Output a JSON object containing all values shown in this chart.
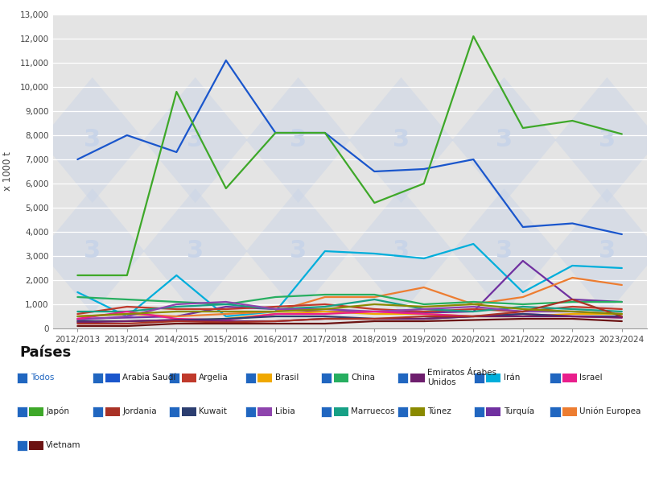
{
  "x_labels": [
    "2012/2013",
    "2013/2014",
    "2014/2015",
    "2015/2016",
    "2016/2017",
    "2017/2018",
    "2018/2019",
    "2019/2020",
    "2020/2021",
    "2021/2022",
    "2022/2023",
    "2023/2024"
  ],
  "series": [
    {
      "name": "Arabia Saudí",
      "color": "#1a56cc",
      "values": [
        7000,
        8000,
        7300,
        11100,
        8100,
        8100,
        6500,
        6600,
        7000,
        4200,
        4350,
        3900
      ]
    },
    {
      "name": "Japón",
      "color": "#3ea829",
      "values": [
        2200,
        2200,
        9800,
        5800,
        8100,
        8100,
        5200,
        6000,
        12100,
        8300,
        8600,
        8050
      ]
    },
    {
      "name": "Irán",
      "color": "#00aedb",
      "values": [
        1500,
        500,
        2200,
        500,
        700,
        3200,
        3100,
        2900,
        3500,
        1500,
        2600,
        2500
      ]
    },
    {
      "name": "Turquía",
      "color": "#7030a0",
      "values": [
        400,
        450,
        500,
        900,
        800,
        700,
        700,
        650,
        700,
        2800,
        1200,
        1100
      ]
    },
    {
      "name": "Unión Europea",
      "color": "#ed7d31",
      "values": [
        500,
        600,
        500,
        600,
        700,
        1300,
        1300,
        1700,
        1000,
        1300,
        2100,
        1800
      ]
    },
    {
      "name": "Argelia",
      "color": "#c0392b",
      "values": [
        600,
        900,
        800,
        800,
        900,
        1000,
        800,
        700,
        800,
        700,
        900,
        800
      ]
    },
    {
      "name": "China",
      "color": "#27ae60",
      "values": [
        1300,
        1200,
        1100,
        1000,
        1300,
        1400,
        1400,
        1000,
        1100,
        1000,
        1100,
        1100
      ]
    },
    {
      "name": "Marruecos",
      "color": "#16a085",
      "values": [
        700,
        700,
        900,
        1000,
        800,
        900,
        1200,
        800,
        700,
        900,
        800,
        700
      ]
    },
    {
      "name": "Libia",
      "color": "#8e44ad",
      "values": [
        350,
        500,
        1000,
        1100,
        800,
        800,
        700,
        800,
        900,
        700,
        700,
        600
      ]
    },
    {
      "name": "Brasil",
      "color": "#f0a800",
      "values": [
        300,
        300,
        300,
        400,
        600,
        700,
        600,
        600,
        500,
        500,
        600,
        600
      ]
    },
    {
      "name": "Israel",
      "color": "#e91e8c",
      "values": [
        400,
        700,
        400,
        350,
        600,
        600,
        700,
        600,
        500,
        600,
        500,
        450
      ]
    },
    {
      "name": "Kuwait",
      "color": "#2c3e70",
      "values": [
        300,
        300,
        350,
        400,
        500,
        500,
        400,
        400,
        500,
        600,
        500,
        500
      ]
    },
    {
      "name": "Emiratos Árabes Unidos",
      "color": "#6e1f6e",
      "values": [
        250,
        300,
        350,
        300,
        300,
        400,
        400,
        400,
        500,
        500,
        500,
        450
      ]
    },
    {
      "name": "Jordania",
      "color": "#a93226",
      "values": [
        200,
        200,
        300,
        250,
        300,
        400,
        400,
        500,
        500,
        700,
        1200,
        500
      ]
    },
    {
      "name": "Túnez",
      "color": "#8a8a00",
      "values": [
        500,
        600,
        700,
        700,
        700,
        800,
        1000,
        900,
        1000,
        800,
        700,
        600
      ]
    },
    {
      "name": "Vietnam",
      "color": "#6b1212",
      "values": [
        100,
        100,
        200,
        200,
        200,
        200,
        300,
        300,
        350,
        400,
        400,
        300
      ]
    }
  ],
  "ylim": [
    0,
    13000
  ],
  "yticks": [
    0,
    1000,
    2000,
    3000,
    4000,
    5000,
    6000,
    7000,
    8000,
    9000,
    10000,
    11000,
    12000,
    13000
  ],
  "ylabel": "x 1000 t",
  "plot_bg": "#e4e4e4",
  "fig_bg": "#ffffff",
  "watermark_color": "#c8d4e8",
  "legend_title": "Países",
  "legend_items_row1": [
    {
      "name": "Todos",
      "color": "#1a56cc",
      "is_todos": true
    },
    {
      "name": "Arabia Saudí",
      "color": "#1a56cc",
      "is_todos": false
    },
    {
      "name": "Argelia",
      "color": "#c0392b",
      "is_todos": false
    },
    {
      "name": "Brasil",
      "color": "#f0a800",
      "is_todos": false
    },
    {
      "name": "China",
      "color": "#27ae60",
      "is_todos": false
    },
    {
      "name": "Emiratos Árabes\nUnidos",
      "color": "#6e1f6e",
      "is_todos": false
    },
    {
      "name": "Irán",
      "color": "#00aedb",
      "is_todos": false
    },
    {
      "name": "Israel",
      "color": "#e91e8c",
      "is_todos": false
    }
  ],
  "legend_items_row2": [
    {
      "name": "Japón",
      "color": "#3ea829",
      "is_todos": false
    },
    {
      "name": "Jordania",
      "color": "#a93226",
      "is_todos": false
    },
    {
      "name": "Kuwait",
      "color": "#2c3e70",
      "is_todos": false
    },
    {
      "name": "Libia",
      "color": "#8e44ad",
      "is_todos": false
    },
    {
      "name": "Marruecos",
      "color": "#16a085",
      "is_todos": false
    },
    {
      "name": "Túnez",
      "color": "#8a8a00",
      "is_todos": false
    },
    {
      "name": "Turquía",
      "color": "#7030a0",
      "is_todos": false
    },
    {
      "name": "Unión Europea",
      "color": "#ed7d31",
      "is_todos": false
    }
  ],
  "legend_items_row3": [
    {
      "name": "Vietnam",
      "color": "#6b1212",
      "is_todos": false
    }
  ],
  "checkbox_color": "#2066c0"
}
